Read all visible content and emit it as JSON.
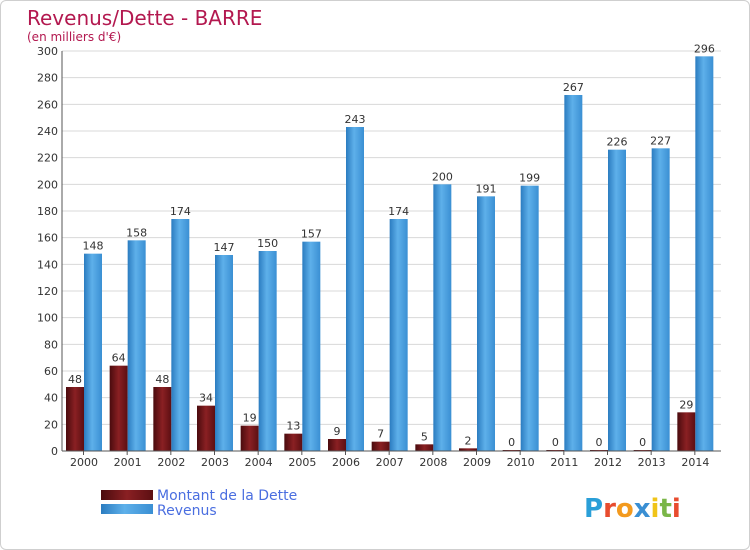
{
  "chart_data": {
    "type": "bar",
    "title": "Revenus/Dette - BARRE",
    "subtitle": "(en milliers d'€)",
    "categories": [
      "2000",
      "2001",
      "2002",
      "2003",
      "2004",
      "2005",
      "2006",
      "2007",
      "2008",
      "2009",
      "2010",
      "2011",
      "2012",
      "2013",
      "2014"
    ],
    "series": [
      {
        "name": "Montant de la Dette",
        "values": [
          48,
          64,
          48,
          34,
          19,
          13,
          9,
          7,
          5,
          2,
          0,
          0,
          0,
          0,
          29
        ]
      },
      {
        "name": "Revenus",
        "values": [
          148,
          158,
          174,
          147,
          150,
          157,
          243,
          174,
          200,
          191,
          199,
          267,
          226,
          227,
          296
        ]
      }
    ],
    "ylim": [
      0,
      300
    ],
    "yticks": [
      0,
      20,
      40,
      60,
      80,
      100,
      120,
      140,
      160,
      180,
      200,
      220,
      240,
      260,
      280,
      300
    ],
    "grid": true,
    "legend_position": "bottom-left",
    "colors": {
      "title": "#b3184f",
      "debt_dark": "#5c0f12",
      "debt_light": "#a0282a",
      "revenue_dark": "#2f86cc",
      "revenue_light": "#5eb0ea",
      "legend_text": "#4a6ee0",
      "grid": "#d8d8d8"
    }
  },
  "logo": {
    "text": "Proxiti"
  }
}
